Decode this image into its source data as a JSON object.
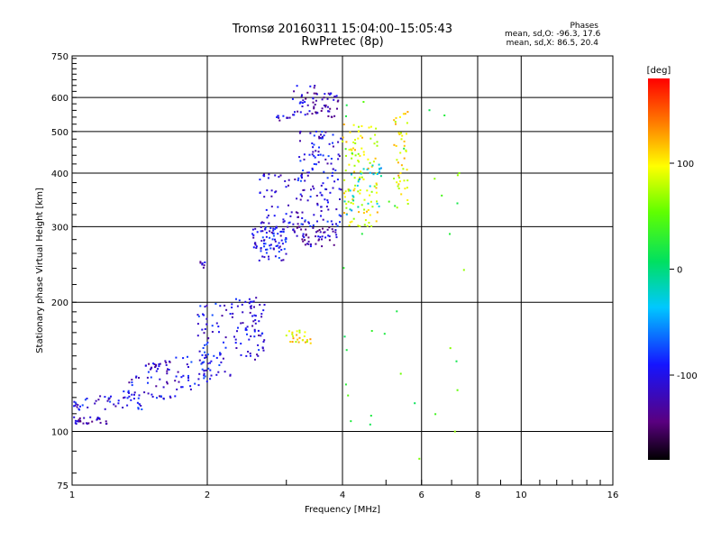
{
  "header": {
    "title": "Tromsø 20160311 15:04:00–15:05:43",
    "subtitle": "RwPretec (8p)"
  },
  "stats": {
    "heading": "Phases",
    "o_line": "mean, sd,O: -96.3, 17.6",
    "x_line": "mean, sd,X:  86.5, 20.4"
  },
  "colorbar": {
    "label": "[deg]",
    "ticks": [
      {
        "value": 100,
        "label": "100"
      },
      {
        "value": 0,
        "label": "0"
      },
      {
        "value": -100,
        "label": "-100"
      }
    ],
    "range": [
      -180,
      180
    ]
  },
  "chart_data": {
    "type": "scatter",
    "title": "Tromsø 20160311 15:04:00–15:05:43",
    "subtitle": "RwPretec (8p)",
    "xlabel": "Frequency [MHz]",
    "ylabel": "Stationary phase Virtual Height [km]",
    "x_scale": "log",
    "y_scale": "log",
    "xlim": [
      1,
      16
    ],
    "ylim": [
      75,
      750
    ],
    "x_ticks": [
      {
        "value": 1,
        "label": "1",
        "major": true
      },
      {
        "value": 2,
        "label": "2",
        "major": true
      },
      {
        "value": 4,
        "label": "4",
        "major": true
      },
      {
        "value": 6,
        "label": "6",
        "major": true
      },
      {
        "value": 8,
        "label": "8",
        "major": true
      },
      {
        "value": 10,
        "label": "10",
        "major": true
      },
      {
        "value": 16,
        "label": "16",
        "major": false
      }
    ],
    "y_ticks": [
      {
        "value": 75,
        "label": "75",
        "major": false
      },
      {
        "value": 100,
        "label": "100",
        "major": true
      },
      {
        "value": 200,
        "label": "200",
        "major": true
      },
      {
        "value": 300,
        "label": "300",
        "major": true
      },
      {
        "value": 400,
        "label": "400",
        "major": true
      },
      {
        "value": 500,
        "label": "500",
        "major": true
      },
      {
        "value": 600,
        "label": "600",
        "major": true
      },
      {
        "value": 750,
        "label": "750",
        "major": false
      }
    ],
    "grid": true,
    "color_by": "phase [deg]",
    "colormap": "rainbow (black -> purple -> blue -> cyan -> green -> yellow -> orange -> red)",
    "clusters": [
      {
        "x_range": [
          1.0,
          1.2
        ],
        "y_range": [
          104,
          108
        ],
        "phase_mean": -120,
        "count": 30
      },
      {
        "x_range": [
          1.0,
          1.45
        ],
        "y_range": [
          112,
          122
        ],
        "phase_mean": -100,
        "count": 45
      },
      {
        "x_range": [
          1.3,
          1.7
        ],
        "y_range": [
          118,
          138
        ],
        "phase_mean": -105,
        "count": 40
      },
      {
        "x_range": [
          1.45,
          1.68
        ],
        "y_range": [
          138,
          146
        ],
        "phase_mean": -115,
        "count": 25
      },
      {
        "x_range": [
          1.7,
          2.0
        ],
        "y_range": [
          125,
          150
        ],
        "phase_mean": -100,
        "count": 30
      },
      {
        "x_range": [
          1.9,
          2.3
        ],
        "y_range": [
          130,
          200
        ],
        "phase_mean": -100,
        "count": 75
      },
      {
        "x_range": [
          1.92,
          1.98
        ],
        "y_range": [
          240,
          250
        ],
        "phase_mean": -110,
        "count": 7
      },
      {
        "x_range": [
          2.3,
          2.7
        ],
        "y_range": [
          145,
          205
        ],
        "phase_mean": -105,
        "count": 70
      },
      {
        "x_range": [
          2.5,
          3.0
        ],
        "y_range": [
          250,
          300
        ],
        "phase_mean": -100,
        "count": 80
      },
      {
        "x_range": [
          2.6,
          3.3
        ],
        "y_range": [
          290,
          400
        ],
        "phase_mean": -110,
        "count": 70
      },
      {
        "x_range": [
          2.85,
          3.1
        ],
        "y_range": [
          525,
          545
        ],
        "phase_mean": -110,
        "count": 10
      },
      {
        "x_range": [
          3.1,
          3.5
        ],
        "y_range": [
          545,
          640
        ],
        "phase_mean": -115,
        "count": 30
      },
      {
        "x_range": [
          3.1,
          3.9
        ],
        "y_range": [
          270,
          300
        ],
        "phase_mean": -120,
        "count": 50
      },
      {
        "x_range": [
          3.2,
          4.0
        ],
        "y_range": [
          300,
          500
        ],
        "phase_mean": -100,
        "count": 120
      },
      {
        "x_range": [
          3.4,
          3.95
        ],
        "y_range": [
          540,
          620
        ],
        "phase_mean": -120,
        "count": 40
      },
      {
        "x_range": [
          3.0,
          3.4
        ],
        "y_range": [
          160,
          172
        ],
        "phase_mean": 100,
        "count": 25
      },
      {
        "x_range": [
          4.0,
          4.8
        ],
        "y_range": [
          300,
          520
        ],
        "phase_mean": 95,
        "count": 110
      },
      {
        "x_range": [
          4.0,
          4.9
        ],
        "y_range": [
          320,
          420
        ],
        "phase_mean": -30,
        "count": 30
      },
      {
        "x_range": [
          5.2,
          5.6
        ],
        "y_range": [
          330,
          560
        ],
        "phase_mean": 100,
        "count": 45
      },
      {
        "x_range": [
          4.0,
          7.5
        ],
        "y_range": [
          85,
          620
        ],
        "phase_mean": 40,
        "count": 40
      }
    ]
  }
}
